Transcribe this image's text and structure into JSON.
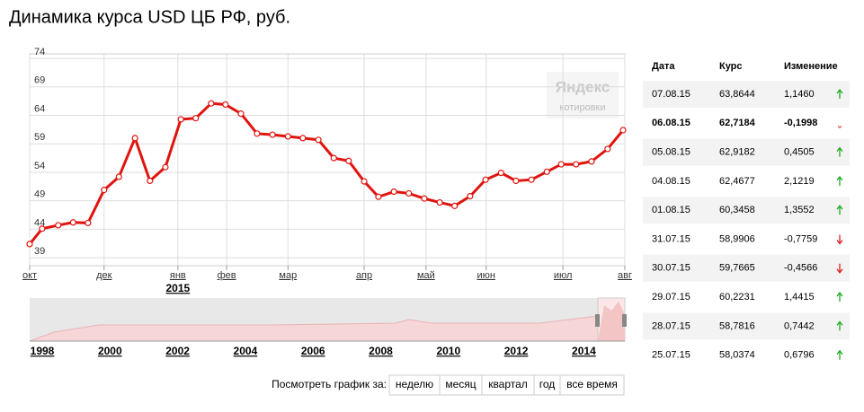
{
  "header": {
    "title": "Динамика курса USD ЦБ РФ, руб."
  },
  "chart_data": {
    "type": "line",
    "x": [
      0,
      0.21,
      0.48,
      0.73,
      0.98,
      1.25,
      1.5,
      1.77,
      2.02,
      2.28,
      2.54,
      2.79,
      3.05,
      3.29,
      3.55,
      3.82,
      4.08,
      4.34,
      4.59,
      4.85,
      5.11,
      5.36,
      5.62,
      5.86,
      6.12,
      6.37,
      6.63,
      6.89,
      7.14,
      7.4,
      7.66,
      7.92,
      8.17,
      8.43,
      8.69,
      8.93,
      9.18,
      9.44,
      9.71,
      9.97
    ],
    "series": [
      {
        "name": "USD",
        "color": "#e0140f",
        "values": [
          41.4,
          44.1,
          44.7,
          45.2,
          45.1,
          50.9,
          53.2,
          60.0,
          52.5,
          54.9,
          63.3,
          63.5,
          66.1,
          65.9,
          64.3,
          60.8,
          60.6,
          60.3,
          60.0,
          59.7,
          56.5,
          56.0,
          52.4,
          49.7,
          50.6,
          50.3,
          49.4,
          48.7,
          48.1,
          49.8,
          52.7,
          53.9,
          52.5,
          52.7,
          54.1,
          55.4,
          55.4,
          55.9,
          58.1,
          61.4
        ]
      }
    ],
    "xlim": [
      0,
      10
    ],
    "xticks": [
      {
        "value": 0,
        "label": "окт"
      },
      {
        "value": 1.25,
        "label": "дек"
      },
      {
        "value": 2.49,
        "label": "янв"
      },
      {
        "value": 3.31,
        "label": "фев"
      },
      {
        "value": 4.34,
        "label": "мар"
      },
      {
        "value": 5.62,
        "label": "апр"
      },
      {
        "value": 6.66,
        "label": "май"
      },
      {
        "value": 7.67,
        "label": "июн"
      },
      {
        "value": 8.96,
        "label": "июл"
      },
      {
        "value": 10,
        "label": "авг"
      }
    ],
    "year_label": "2015",
    "ylim": [
      37.6,
      74.8
    ],
    "yticks": [
      39,
      44,
      49,
      54,
      59,
      64,
      69,
      74
    ],
    "grid": true
  },
  "watermark": {
    "brand": "Яндекс",
    "sub": "котировки"
  },
  "navigator": {
    "years": [
      "1998",
      "2000",
      "2002",
      "2004",
      "2006",
      "2008",
      "2010",
      "2012",
      "2014"
    ]
  },
  "table": {
    "columns": [
      "Дата",
      "Курс",
      "Изменение"
    ],
    "rows": [
      [
        "07.08.15",
        "63,8644",
        "1,1460"
      ],
      [
        "06.08.15",
        "62,7184",
        "-0,1998"
      ],
      [
        "05.08.15",
        "62,9182",
        "0,4505"
      ],
      [
        "04.08.15",
        "62,4677",
        "2,1219"
      ],
      [
        "01.08.15",
        "60,3458",
        "1,3552"
      ],
      [
        "31.07.15",
        "58,9906",
        "-0,7759"
      ],
      [
        "30.07.15",
        "59,7665",
        "-0,4566"
      ],
      [
        "29.07.15",
        "60,2231",
        "1,4415"
      ],
      [
        "28.07.15",
        "58,7816",
        "0,7442"
      ],
      [
        "25.07.15",
        "58,0374",
        "0,6796"
      ]
    ]
  },
  "period": {
    "label": "Посмотреть график за:",
    "buttons": [
      "неделю",
      "месяц",
      "квартал",
      "год",
      "все время"
    ]
  }
}
